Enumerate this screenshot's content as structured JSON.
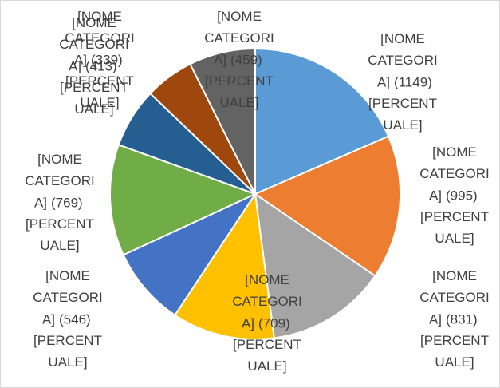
{
  "chart_data": {
    "type": "pie",
    "categories": [
      "[NOME CATEGORIA]",
      "[NOME CATEGORIA]",
      "[NOME CATEGORIA]",
      "[NOME CATEGORIA]",
      "[NOME CATEGORIA]",
      "[NOME CATEGORIA]",
      "[NOME CATEGORIA]",
      "[NOME CATEGORIA]",
      "[NOME CATEGORIA]"
    ],
    "values": [
      1149,
      995,
      831,
      709,
      546,
      769,
      413,
      339,
      459
    ],
    "value_labels": [
      "(1149)",
      "(995)",
      "(831)",
      "(709)",
      "(546)",
      "(769)",
      "(413)",
      "(339)",
      "(459)"
    ],
    "percent_label": "[PERCENTUALE]",
    "colors": [
      "#5b9bd5",
      "#ed7d31",
      "#a5a5a5",
      "#ffc000",
      "#4472c4",
      "#70ad47",
      "#255e91",
      "#9e480e",
      "#636363"
    ]
  }
}
